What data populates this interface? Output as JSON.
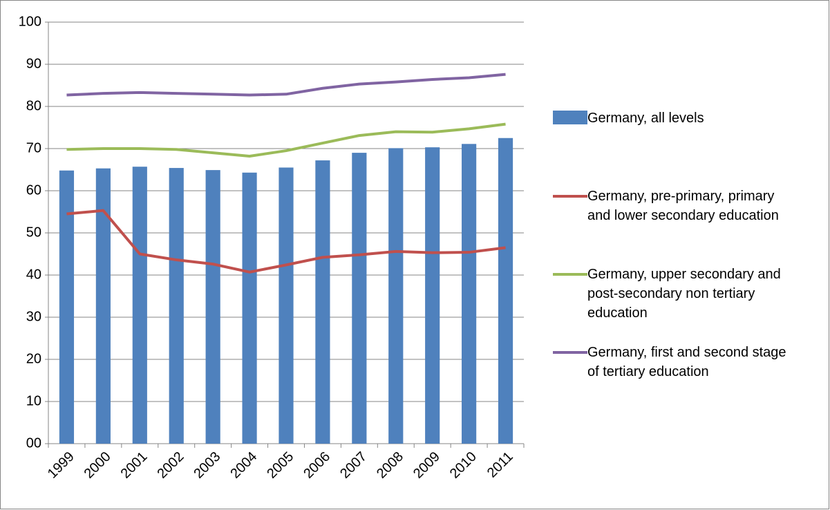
{
  "chart_data": {
    "type": "bar-line",
    "categories": [
      "1999",
      "2000",
      "2001",
      "2002",
      "2003",
      "2004",
      "2005",
      "2006",
      "2007",
      "2008",
      "2009",
      "2010",
      "2011"
    ],
    "series": [
      {
        "name": "Germany, all levels",
        "type": "bar",
        "color": "#4f81bd",
        "values": [
          64.8,
          65.3,
          65.7,
          65.4,
          64.9,
          64.3,
          65.5,
          67.2,
          69.0,
          70.1,
          70.3,
          71.1,
          72.5
        ]
      },
      {
        "name": "Germany, pre-primary, primary and lower secondary education",
        "type": "line",
        "color": "#c0504d",
        "values": [
          54.5,
          55.3,
          45.0,
          43.6,
          42.6,
          40.7,
          42.4,
          44.2,
          44.8,
          45.6,
          45.3,
          45.4,
          46.5
        ]
      },
      {
        "name": "Germany, upper secondary and post-secondary non tertiary education",
        "type": "line",
        "color": "#9bbb59",
        "values": [
          69.8,
          70.0,
          70.0,
          69.8,
          69.0,
          68.2,
          69.5,
          71.3,
          73.1,
          74.0,
          73.9,
          74.7,
          75.8
        ]
      },
      {
        "name": "Germany, first and second stage of tertiary education",
        "type": "line",
        "color": "#8064a2",
        "values": [
          82.7,
          83.1,
          83.3,
          83.1,
          82.9,
          82.7,
          82.9,
          84.3,
          85.3,
          85.8,
          86.4,
          86.8,
          87.6
        ]
      }
    ],
    "ylim": [
      0,
      100
    ],
    "yticks": [
      {
        "value": 0,
        "label": "00"
      },
      10,
      20,
      30,
      40,
      50,
      60,
      70,
      80,
      90,
      100
    ],
    "grid": true,
    "legend": "right"
  }
}
